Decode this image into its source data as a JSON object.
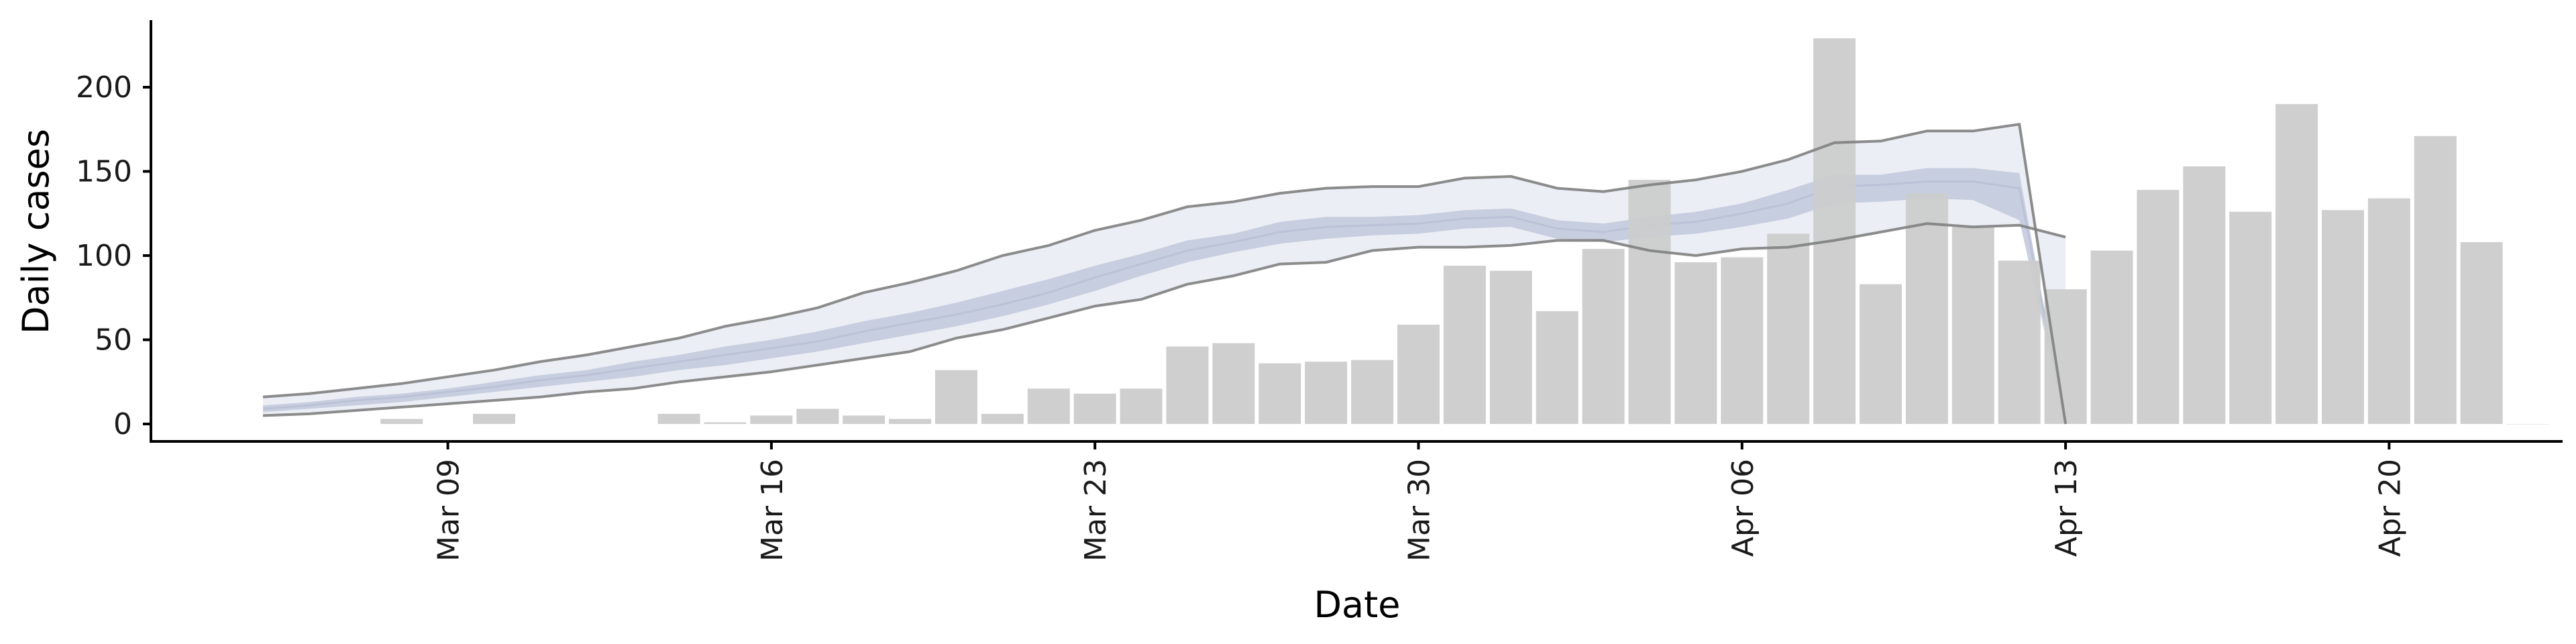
{
  "chart_data": {
    "type": "bar",
    "title": "",
    "xlabel": "Date",
    "ylabel": "Daily cases",
    "x_start_date": "2020-03-05",
    "x_tick_dates": [
      "2020-03-09",
      "2020-03-16",
      "2020-03-23",
      "2020-03-30",
      "2020-04-06",
      "2020-04-13",
      "2020-04-20"
    ],
    "x_tick_labels": [
      "Mar 09",
      "Mar 16",
      "Mar 23",
      "Mar 30",
      "Apr 06",
      "Apr 13",
      "Apr 20"
    ],
    "xlim": [
      "2020-03-02",
      "2020-04-29"
    ],
    "y_ticks": [
      0,
      50,
      100,
      150,
      200
    ],
    "ylim": [
      -10,
      240
    ],
    "grid": false,
    "bar_color": "#cccccc",
    "band_color_inner": "#c1c8da",
    "band_color_outer": "#eceef5",
    "bound_line_color": "#808080",
    "daily_cases": {
      "dates": [
        "2020-03-08",
        "2020-03-10",
        "2020-03-14",
        "2020-03-15",
        "2020-03-16",
        "2020-03-17",
        "2020-03-18",
        "2020-03-19",
        "2020-03-20",
        "2020-03-21",
        "2020-03-22",
        "2020-03-23",
        "2020-03-24",
        "2020-03-25",
        "2020-03-26",
        "2020-03-27",
        "2020-03-28",
        "2020-03-29",
        "2020-03-30",
        "2020-03-31",
        "2020-04-01",
        "2020-04-02",
        "2020-04-03",
        "2020-04-04",
        "2020-04-05",
        "2020-04-06",
        "2020-04-07",
        "2020-04-08",
        "2020-04-09",
        "2020-04-10",
        "2020-04-11",
        "2020-04-12",
        "2020-04-13",
        "2020-04-14",
        "2020-04-15",
        "2020-04-16",
        "2020-04-17",
        "2020-04-18",
        "2020-04-19",
        "2020-04-20",
        "2020-04-21",
        "2020-04-22",
        "2020-04-23"
      ],
      "values": [
        3,
        6,
        6,
        1,
        5,
        9,
        5,
        3,
        32,
        6,
        21,
        18,
        21,
        46,
        48,
        36,
        37,
        38,
        59,
        94,
        91,
        67,
        104,
        145,
        96,
        99,
        113,
        229,
        83,
        137,
        117,
        97,
        80,
        103,
        139,
        153,
        126,
        190,
        127,
        134,
        171,
        108,
        0
      ]
    },
    "estimate": {
      "dates": [
        "2020-03-05",
        "2020-03-06",
        "2020-03-07",
        "2020-03-08",
        "2020-03-09",
        "2020-03-10",
        "2020-03-11",
        "2020-03-12",
        "2020-03-13",
        "2020-03-14",
        "2020-03-15",
        "2020-03-16",
        "2020-03-17",
        "2020-03-18",
        "2020-03-19",
        "2020-03-20",
        "2020-03-21",
        "2020-03-22",
        "2020-03-23",
        "2020-03-24",
        "2020-03-25",
        "2020-03-26",
        "2020-03-27",
        "2020-03-28",
        "2020-03-29",
        "2020-03-30",
        "2020-03-31",
        "2020-04-01",
        "2020-04-02",
        "2020-04-03",
        "2020-04-04",
        "2020-04-05",
        "2020-04-06",
        "2020-04-07",
        "2020-04-08",
        "2020-04-09",
        "2020-04-10",
        "2020-04-11",
        "2020-04-12",
        "2020-04-13"
      ],
      "upper_90": [
        16,
        18,
        21,
        24,
        28,
        32,
        37,
        41,
        46,
        51,
        58,
        63,
        69,
        78,
        84,
        91,
        100,
        106,
        115,
        121,
        129,
        132,
        137,
        140,
        141,
        141,
        146,
        147,
        140,
        138,
        142,
        145,
        150,
        157,
        167,
        168,
        174,
        174,
        178,
        0
      ],
      "upper_50": [
        11,
        13,
        16,
        18,
        21,
        25,
        29,
        32,
        37,
        41,
        46,
        50,
        55,
        61,
        66,
        72,
        79,
        86,
        94,
        101,
        109,
        113,
        120,
        123,
        123,
        124,
        127,
        128,
        121,
        119,
        123,
        126,
        131,
        139,
        148,
        148,
        152,
        152,
        149,
        0
      ],
      "median": [
        9,
        11,
        14,
        16,
        19,
        22,
        26,
        29,
        33,
        37,
        41,
        45,
        49,
        55,
        60,
        65,
        71,
        78,
        87,
        95,
        103,
        108,
        114,
        117,
        118,
        119,
        122,
        123,
        116,
        114,
        118,
        120,
        125,
        131,
        141,
        142,
        144,
        144,
        140,
        0
      ],
      "lower_50": [
        7,
        9,
        11,
        13,
        16,
        19,
        22,
        25,
        28,
        32,
        35,
        39,
        43,
        48,
        53,
        58,
        64,
        71,
        79,
        88,
        96,
        102,
        107,
        110,
        112,
        113,
        116,
        117,
        110,
        108,
        111,
        113,
        117,
        122,
        131,
        132,
        134,
        133,
        121,
        0
      ],
      "lower_90": [
        5,
        6,
        8,
        10,
        12,
        14,
        16,
        19,
        21,
        25,
        28,
        31,
        35,
        39,
        43,
        51,
        56,
        63,
        70,
        74,
        83,
        88,
        95,
        96,
        103,
        105,
        105,
        106,
        109,
        109,
        103,
        100,
        104,
        105,
        109,
        114,
        119,
        117,
        118,
        111
      ]
    }
  }
}
